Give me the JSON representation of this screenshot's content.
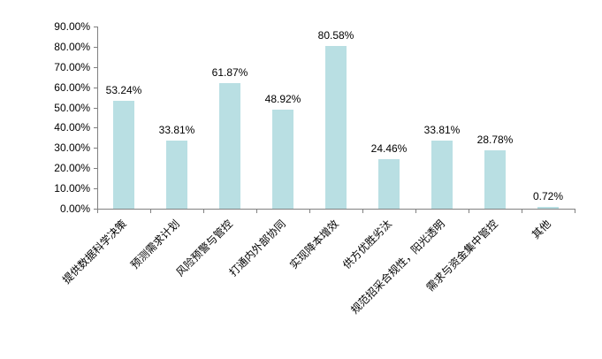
{
  "chart_data": {
    "type": "bar",
    "title": "",
    "xlabel": "",
    "ylabel": "",
    "categories": [
      "提供数据科学决策",
      "预测需求计划",
      "风险预警与管控",
      "打通内外部协同",
      "实现降本增效",
      "供方优胜劣汰",
      "规范招采合规性，阳光透明",
      "需求与资金集中管控",
      "其他"
    ],
    "values": [
      53.24,
      33.81,
      61.87,
      48.92,
      80.58,
      24.46,
      33.81,
      28.78,
      0.72
    ],
    "data_labels": [
      "53.24%",
      "33.81%",
      "61.87%",
      "48.92%",
      "80.58%",
      "24.46%",
      "33.81%",
      "28.78%",
      "0.72%"
    ],
    "ylim": [
      0,
      90
    ],
    "y_tick_step": 10,
    "y_tick_labels": [
      "0.00%",
      "10.00%",
      "20.00%",
      "30.00%",
      "40.00%",
      "50.00%",
      "60.00%",
      "70.00%",
      "80.00%",
      "90.00%"
    ],
    "grid": false,
    "legend": false,
    "bar_color": "#b9dfe3",
    "axis_color": "#808080",
    "text_color": "#000000",
    "background_color": "#ffffff"
  }
}
